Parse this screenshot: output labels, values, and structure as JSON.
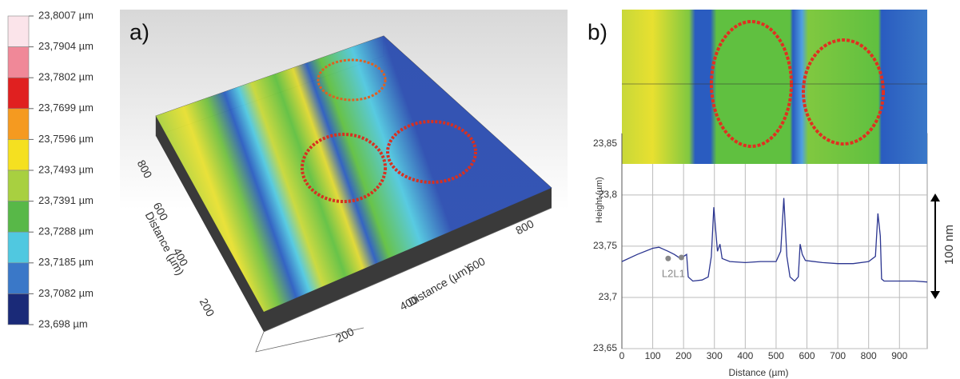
{
  "colorbar": {
    "entries": [
      {
        "value": 23.8007,
        "label": "23,8007 µm"
      },
      {
        "value": 23.7904,
        "label": "23,7904 µm"
      },
      {
        "value": 23.7802,
        "label": "23,7802 µm"
      },
      {
        "value": 23.7699,
        "label": "23,7699 µm"
      },
      {
        "value": 23.7596,
        "label": "23,7596 µm"
      },
      {
        "value": 23.7493,
        "label": "23,7493 µm"
      },
      {
        "value": 23.7391,
        "label": "23,7391 µm"
      },
      {
        "value": 23.7288,
        "label": "23,7288 µm"
      },
      {
        "value": 23.7185,
        "label": "23,7185 µm"
      },
      {
        "value": 23.7082,
        "label": "23,7082 µm"
      },
      {
        "value": 23.698,
        "label": "23,698 µm"
      }
    ],
    "colors": [
      "#fbe4ea",
      "#f08898",
      "#e02020",
      "#f59a20",
      "#f5e020",
      "#a8d040",
      "#58b848",
      "#50c8e0",
      "#3a78c8",
      "#1a2a78"
    ]
  },
  "panel_labels": [
    "a)",
    "b)"
  ],
  "panel_a": {
    "x_label": "Distance (µm)",
    "x_ticks": [
      200,
      400,
      600,
      800
    ],
    "y_label": "Distance (µm)",
    "y_ticks": [
      200,
      400,
      600,
      800
    ]
  },
  "chart_data": [
    {
      "type": "line",
      "x_label": "Distance (µm)",
      "y_label": "Height (µm)",
      "x": [
        0,
        50,
        100,
        120,
        150,
        170,
        190,
        200,
        210,
        215,
        230,
        260,
        280,
        290,
        298,
        303,
        310,
        318,
        325,
        350,
        400,
        450,
        500,
        515,
        525,
        535,
        545,
        560,
        572,
        578,
        585,
        595,
        650,
        700,
        750,
        800,
        822,
        830,
        838,
        842,
        850,
        900,
        950,
        990
      ],
      "series": [
        {
          "color": "#2b3590",
          "values": [
            23.735,
            23.742,
            23.748,
            23.749,
            23.745,
            23.742,
            23.738,
            23.74,
            23.742,
            23.72,
            23.716,
            23.717,
            23.72,
            23.74,
            23.788,
            23.77,
            23.745,
            23.752,
            23.738,
            23.735,
            23.734,
            23.735,
            23.735,
            23.745,
            23.797,
            23.74,
            23.72,
            23.716,
            23.72,
            23.752,
            23.742,
            23.736,
            23.734,
            23.733,
            23.733,
            23.735,
            23.74,
            23.782,
            23.76,
            23.718,
            23.716,
            23.716,
            23.716,
            23.715
          ]
        }
      ],
      "markers": [
        {
          "x": 150,
          "y": 23.738
        },
        {
          "x": 193,
          "y": 23.739
        }
      ],
      "marker_label": "L2L1",
      "scale_annotation": "100 nm",
      "xlim": [
        0,
        990
      ],
      "ylim": [
        23.65,
        23.86
      ],
      "xticks": [
        0,
        100,
        200,
        300,
        400,
        500,
        600,
        700,
        800,
        900
      ],
      "yticks": [
        {
          "value": 23.65,
          "label": "23,65"
        },
        {
          "value": 23.7,
          "label": "23,7"
        },
        {
          "value": 23.75,
          "label": "23,75"
        },
        {
          "value": 23.8,
          "label": "23,8"
        },
        {
          "value": 23.85,
          "label": "23,85"
        }
      ],
      "grid": true
    }
  ]
}
